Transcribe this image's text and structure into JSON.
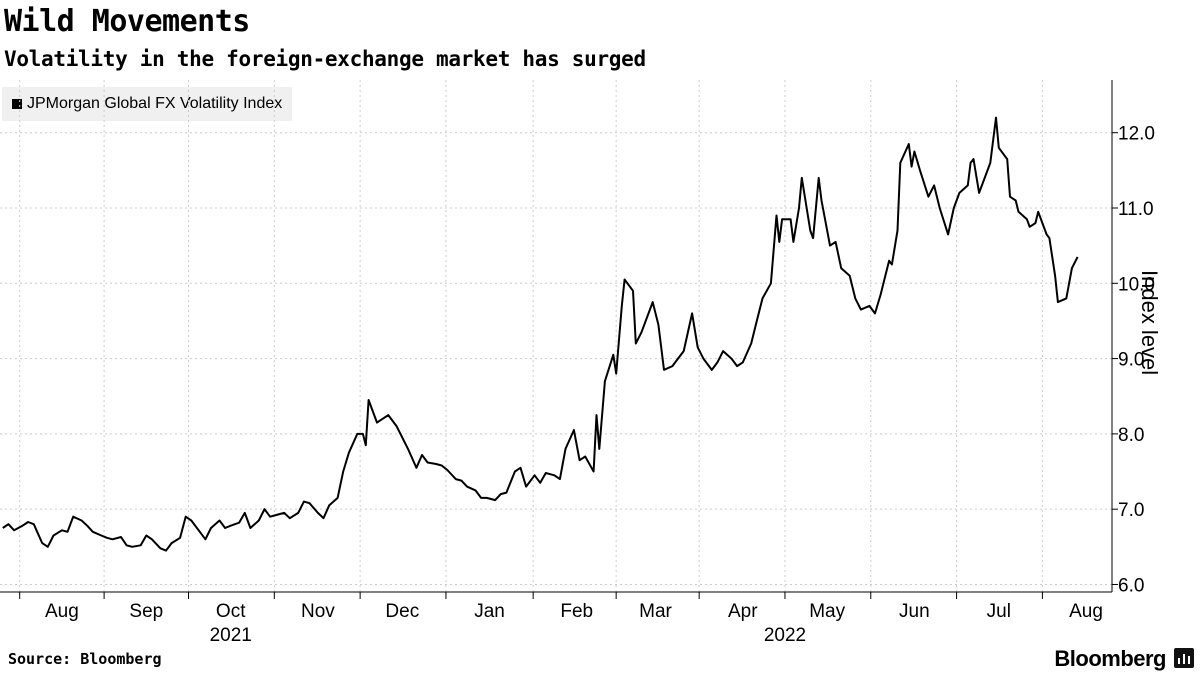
{
  "header": {
    "title": "Wild Movements",
    "subtitle": "Volatility in the foreign-exchange market has surged"
  },
  "footer": {
    "source": "Source: Bloomberg",
    "brand": "Bloomberg"
  },
  "colors": {
    "line": "#000000",
    "grid": "#cccccc",
    "legend_bg": "#f0f0f0"
  },
  "chart_data": {
    "type": "line",
    "ylabel": "Index level",
    "ylim": [
      5.9,
      12.7
    ],
    "y_ticks": [
      6.0,
      7.0,
      8.0,
      9.0,
      10.0,
      11.0,
      12.0
    ],
    "y_tick_labels": [
      "6.0",
      "7.0",
      "8.0",
      "9.0",
      "10.0",
      "11.0",
      "12.0"
    ],
    "grid": true,
    "legend_position": "top-left",
    "x_range": [
      "2021-07-25",
      "2022-08-15"
    ],
    "month_ticks": [
      {
        "label": "Aug",
        "date": "2021-08-16"
      },
      {
        "label": "Sep",
        "date": "2021-09-15"
      },
      {
        "label": "Oct",
        "date": "2021-10-15"
      },
      {
        "label": "Nov",
        "date": "2021-11-15"
      },
      {
        "label": "Dec",
        "date": "2021-12-15"
      },
      {
        "label": "Jan",
        "date": "2022-01-15"
      },
      {
        "label": "Feb",
        "date": "2022-02-15"
      },
      {
        "label": "Mar",
        "date": "2022-03-15"
      },
      {
        "label": "Apr",
        "date": "2022-04-15"
      },
      {
        "label": "May",
        "date": "2022-05-15"
      },
      {
        "label": "Jun",
        "date": "2022-06-15"
      },
      {
        "label": "Jul",
        "date": "2022-07-15"
      },
      {
        "label": "Aug",
        "date": "2022-08-15"
      }
    ],
    "year_labels": [
      {
        "label": "2021",
        "date": "2021-10-15"
      },
      {
        "label": "2022",
        "date": "2022-04-30"
      }
    ],
    "series": [
      {
        "name": "JPMorgan Global FX Volatility Index",
        "color": "#000000",
        "points": [
          [
            "2021-07-26",
            6.75
          ],
          [
            "2021-07-28",
            6.8
          ],
          [
            "2021-07-30",
            6.72
          ],
          [
            "2021-08-02",
            6.78
          ],
          [
            "2021-08-04",
            6.83
          ],
          [
            "2021-08-06",
            6.8
          ],
          [
            "2021-08-09",
            6.55
          ],
          [
            "2021-08-11",
            6.5
          ],
          [
            "2021-08-13",
            6.65
          ],
          [
            "2021-08-16",
            6.72
          ],
          [
            "2021-08-18",
            6.7
          ],
          [
            "2021-08-20",
            6.9
          ],
          [
            "2021-08-23",
            6.85
          ],
          [
            "2021-08-25",
            6.78
          ],
          [
            "2021-08-27",
            6.7
          ],
          [
            "2021-08-30",
            6.65
          ],
          [
            "2021-09-01",
            6.62
          ],
          [
            "2021-09-03",
            6.6
          ],
          [
            "2021-09-06",
            6.63
          ],
          [
            "2021-09-08",
            6.52
          ],
          [
            "2021-09-10",
            6.5
          ],
          [
            "2021-09-13",
            6.52
          ],
          [
            "2021-09-15",
            6.65
          ],
          [
            "2021-09-17",
            6.6
          ],
          [
            "2021-09-20",
            6.48
          ],
          [
            "2021-09-22",
            6.45
          ],
          [
            "2021-09-24",
            6.55
          ],
          [
            "2021-09-27",
            6.62
          ],
          [
            "2021-09-29",
            6.9
          ],
          [
            "2021-10-01",
            6.85
          ],
          [
            "2021-10-04",
            6.7
          ],
          [
            "2021-10-06",
            6.6
          ],
          [
            "2021-10-08",
            6.75
          ],
          [
            "2021-10-11",
            6.85
          ],
          [
            "2021-10-13",
            6.75
          ],
          [
            "2021-10-15",
            6.78
          ],
          [
            "2021-10-18",
            6.82
          ],
          [
            "2021-10-20",
            6.95
          ],
          [
            "2021-10-22",
            6.75
          ],
          [
            "2021-10-25",
            6.85
          ],
          [
            "2021-10-27",
            7.0
          ],
          [
            "2021-10-29",
            6.9
          ],
          [
            "2021-11-01",
            6.93
          ],
          [
            "2021-11-03",
            6.95
          ],
          [
            "2021-11-05",
            6.88
          ],
          [
            "2021-11-08",
            6.95
          ],
          [
            "2021-11-10",
            7.1
          ],
          [
            "2021-11-12",
            7.08
          ],
          [
            "2021-11-15",
            6.95
          ],
          [
            "2021-11-17",
            6.88
          ],
          [
            "2021-11-19",
            7.05
          ],
          [
            "2021-11-22",
            7.15
          ],
          [
            "2021-11-24",
            7.5
          ],
          [
            "2021-11-26",
            7.75
          ],
          [
            "2021-11-29",
            8.0
          ],
          [
            "2021-12-01",
            8.0
          ],
          [
            "2021-12-02",
            7.85
          ],
          [
            "2021-12-03",
            8.45
          ],
          [
            "2021-12-06",
            8.15
          ],
          [
            "2021-12-08",
            8.2
          ],
          [
            "2021-12-10",
            8.25
          ],
          [
            "2021-12-13",
            8.1
          ],
          [
            "2021-12-15",
            7.95
          ],
          [
            "2021-12-17",
            7.8
          ],
          [
            "2021-12-20",
            7.55
          ],
          [
            "2021-12-22",
            7.72
          ],
          [
            "2021-12-24",
            7.62
          ],
          [
            "2021-12-27",
            7.6
          ],
          [
            "2021-12-29",
            7.58
          ],
          [
            "2021-12-31",
            7.52
          ],
          [
            "2022-01-03",
            7.4
          ],
          [
            "2022-01-05",
            7.38
          ],
          [
            "2022-01-07",
            7.3
          ],
          [
            "2022-01-10",
            7.25
          ],
          [
            "2022-01-12",
            7.15
          ],
          [
            "2022-01-14",
            7.15
          ],
          [
            "2022-01-17",
            7.12
          ],
          [
            "2022-01-19",
            7.2
          ],
          [
            "2022-01-21",
            7.22
          ],
          [
            "2022-01-24",
            7.5
          ],
          [
            "2022-01-26",
            7.55
          ],
          [
            "2022-01-28",
            7.3
          ],
          [
            "2022-01-31",
            7.45
          ],
          [
            "2022-02-02",
            7.35
          ],
          [
            "2022-02-04",
            7.48
          ],
          [
            "2022-02-07",
            7.45
          ],
          [
            "2022-02-09",
            7.4
          ],
          [
            "2022-02-11",
            7.8
          ],
          [
            "2022-02-14",
            8.05
          ],
          [
            "2022-02-16",
            7.65
          ],
          [
            "2022-02-18",
            7.7
          ],
          [
            "2022-02-21",
            7.5
          ],
          [
            "2022-02-22",
            8.25
          ],
          [
            "2022-02-23",
            7.8
          ],
          [
            "2022-02-25",
            8.7
          ],
          [
            "2022-02-28",
            9.05
          ],
          [
            "2022-03-01",
            8.8
          ],
          [
            "2022-03-03",
            9.7
          ],
          [
            "2022-03-04",
            10.05
          ],
          [
            "2022-03-07",
            9.9
          ],
          [
            "2022-03-08",
            9.2
          ],
          [
            "2022-03-10",
            9.35
          ],
          [
            "2022-03-14",
            9.75
          ],
          [
            "2022-03-16",
            9.45
          ],
          [
            "2022-03-18",
            8.85
          ],
          [
            "2022-03-21",
            8.9
          ],
          [
            "2022-03-23",
            9.0
          ],
          [
            "2022-03-25",
            9.1
          ],
          [
            "2022-03-28",
            9.6
          ],
          [
            "2022-03-30",
            9.15
          ],
          [
            "2022-04-01",
            9.0
          ],
          [
            "2022-04-04",
            8.85
          ],
          [
            "2022-04-06",
            8.95
          ],
          [
            "2022-04-08",
            9.1
          ],
          [
            "2022-04-11",
            9.0
          ],
          [
            "2022-04-13",
            8.9
          ],
          [
            "2022-04-15",
            8.95
          ],
          [
            "2022-04-18",
            9.2
          ],
          [
            "2022-04-20",
            9.5
          ],
          [
            "2022-04-22",
            9.8
          ],
          [
            "2022-04-25",
            10.0
          ],
          [
            "2022-04-27",
            10.9
          ],
          [
            "2022-04-28",
            10.55
          ],
          [
            "2022-04-29",
            10.85
          ],
          [
            "2022-05-02",
            10.85
          ],
          [
            "2022-05-03",
            10.55
          ],
          [
            "2022-05-05",
            11.0
          ],
          [
            "2022-05-06",
            11.4
          ],
          [
            "2022-05-09",
            10.7
          ],
          [
            "2022-05-10",
            10.6
          ],
          [
            "2022-05-12",
            11.4
          ],
          [
            "2022-05-13",
            11.1
          ],
          [
            "2022-05-16",
            10.5
          ],
          [
            "2022-05-18",
            10.55
          ],
          [
            "2022-05-20",
            10.2
          ],
          [
            "2022-05-23",
            10.1
          ],
          [
            "2022-05-25",
            9.8
          ],
          [
            "2022-05-27",
            9.65
          ],
          [
            "2022-05-30",
            9.7
          ],
          [
            "2022-06-01",
            9.6
          ],
          [
            "2022-06-03",
            9.85
          ],
          [
            "2022-06-06",
            10.3
          ],
          [
            "2022-06-07",
            10.25
          ],
          [
            "2022-06-09",
            10.7
          ],
          [
            "2022-06-10",
            11.6
          ],
          [
            "2022-06-13",
            11.85
          ],
          [
            "2022-06-14",
            11.55
          ],
          [
            "2022-06-15",
            11.75
          ],
          [
            "2022-06-17",
            11.5
          ],
          [
            "2022-06-20",
            11.15
          ],
          [
            "2022-06-22",
            11.3
          ],
          [
            "2022-06-24",
            11.0
          ],
          [
            "2022-06-27",
            10.65
          ],
          [
            "2022-06-29",
            11.0
          ],
          [
            "2022-07-01",
            11.2
          ],
          [
            "2022-07-04",
            11.3
          ],
          [
            "2022-07-05",
            11.6
          ],
          [
            "2022-07-06",
            11.65
          ],
          [
            "2022-07-08",
            11.2
          ],
          [
            "2022-07-11",
            11.5
          ],
          [
            "2022-07-12",
            11.6
          ],
          [
            "2022-07-14",
            12.2
          ],
          [
            "2022-07-15",
            11.8
          ],
          [
            "2022-07-18",
            11.65
          ],
          [
            "2022-07-19",
            11.15
          ],
          [
            "2022-07-21",
            11.1
          ],
          [
            "2022-07-22",
            10.95
          ],
          [
            "2022-07-25",
            10.85
          ],
          [
            "2022-07-26",
            10.75
          ],
          [
            "2022-07-28",
            10.8
          ],
          [
            "2022-07-29",
            10.95
          ],
          [
            "2022-08-01",
            10.65
          ],
          [
            "2022-08-02",
            10.6
          ],
          [
            "2022-08-04",
            10.1
          ],
          [
            "2022-08-05",
            9.75
          ],
          [
            "2022-08-08",
            9.8
          ],
          [
            "2022-08-10",
            10.2
          ],
          [
            "2022-08-12",
            10.35
          ]
        ]
      }
    ]
  }
}
